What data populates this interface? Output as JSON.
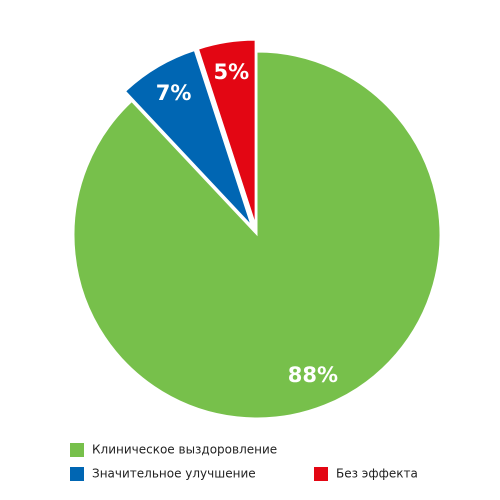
{
  "chart_data": {
    "type": "pie",
    "categories": [
      "Клиническое выздоровление",
      "Значительное улучшение",
      "Без эффекта"
    ],
    "values": [
      88,
      7,
      5
    ],
    "value_labels": [
      "88%",
      "7%",
      "5%"
    ],
    "colors": [
      "#77c04b",
      "#0066b3",
      "#e30613"
    ],
    "exploded": [
      false,
      true,
      true
    ],
    "legend": "bottom"
  }
}
